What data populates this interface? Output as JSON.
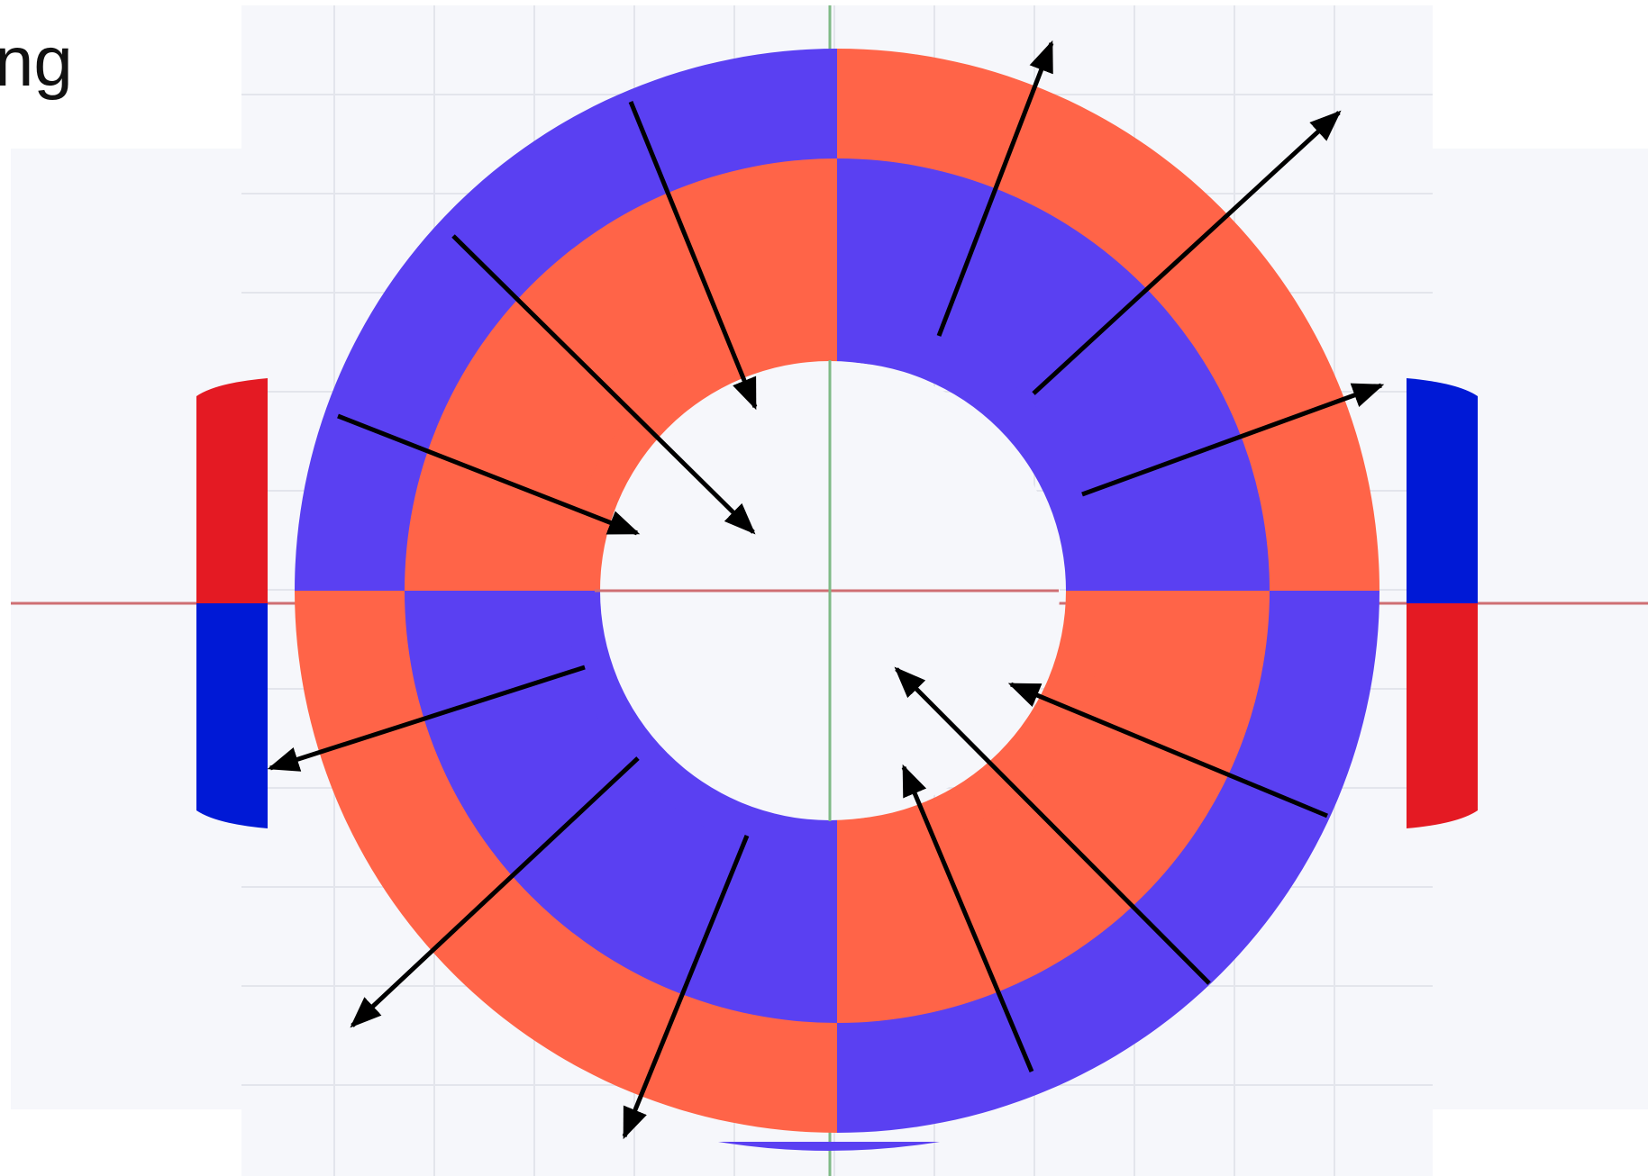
{
  "page_text": {
    "corner_text": "ng"
  },
  "colors": {
    "canvas_bg": "#f6f7fb",
    "grid_line": "#e3e5ec",
    "outer_white": "#ffffff",
    "ring_red": "#ff6448",
    "ring_blue": "#5a40f2",
    "magnet_red": "#e41a23",
    "magnet_blue": "#0019d6",
    "arrow": "#000000",
    "x_axis": "#cf6f73",
    "y_axis": "#7fba86"
  },
  "icons": {
    "arrow_head": "arrowhead-icon"
  },
  "rings": {
    "outer_ring_quadrants": [
      "blue",
      "red",
      "blue",
      "red"
    ],
    "middle_ring_quadrants": [
      "red",
      "blue",
      "red",
      "blue"
    ],
    "inner_band_quadrants": [
      "red",
      "blue",
      "red",
      "blue"
    ]
  },
  "side_magnets": {
    "left": [
      "red",
      "blue"
    ],
    "right": [
      "blue",
      "red"
    ]
  },
  "field_arrows": {
    "count": 12,
    "direction_words": [
      "inward",
      "outward",
      "outward",
      "outward",
      "inward",
      "inward",
      "outward",
      "outward",
      "outward",
      "inward",
      "inward",
      "inward"
    ]
  }
}
